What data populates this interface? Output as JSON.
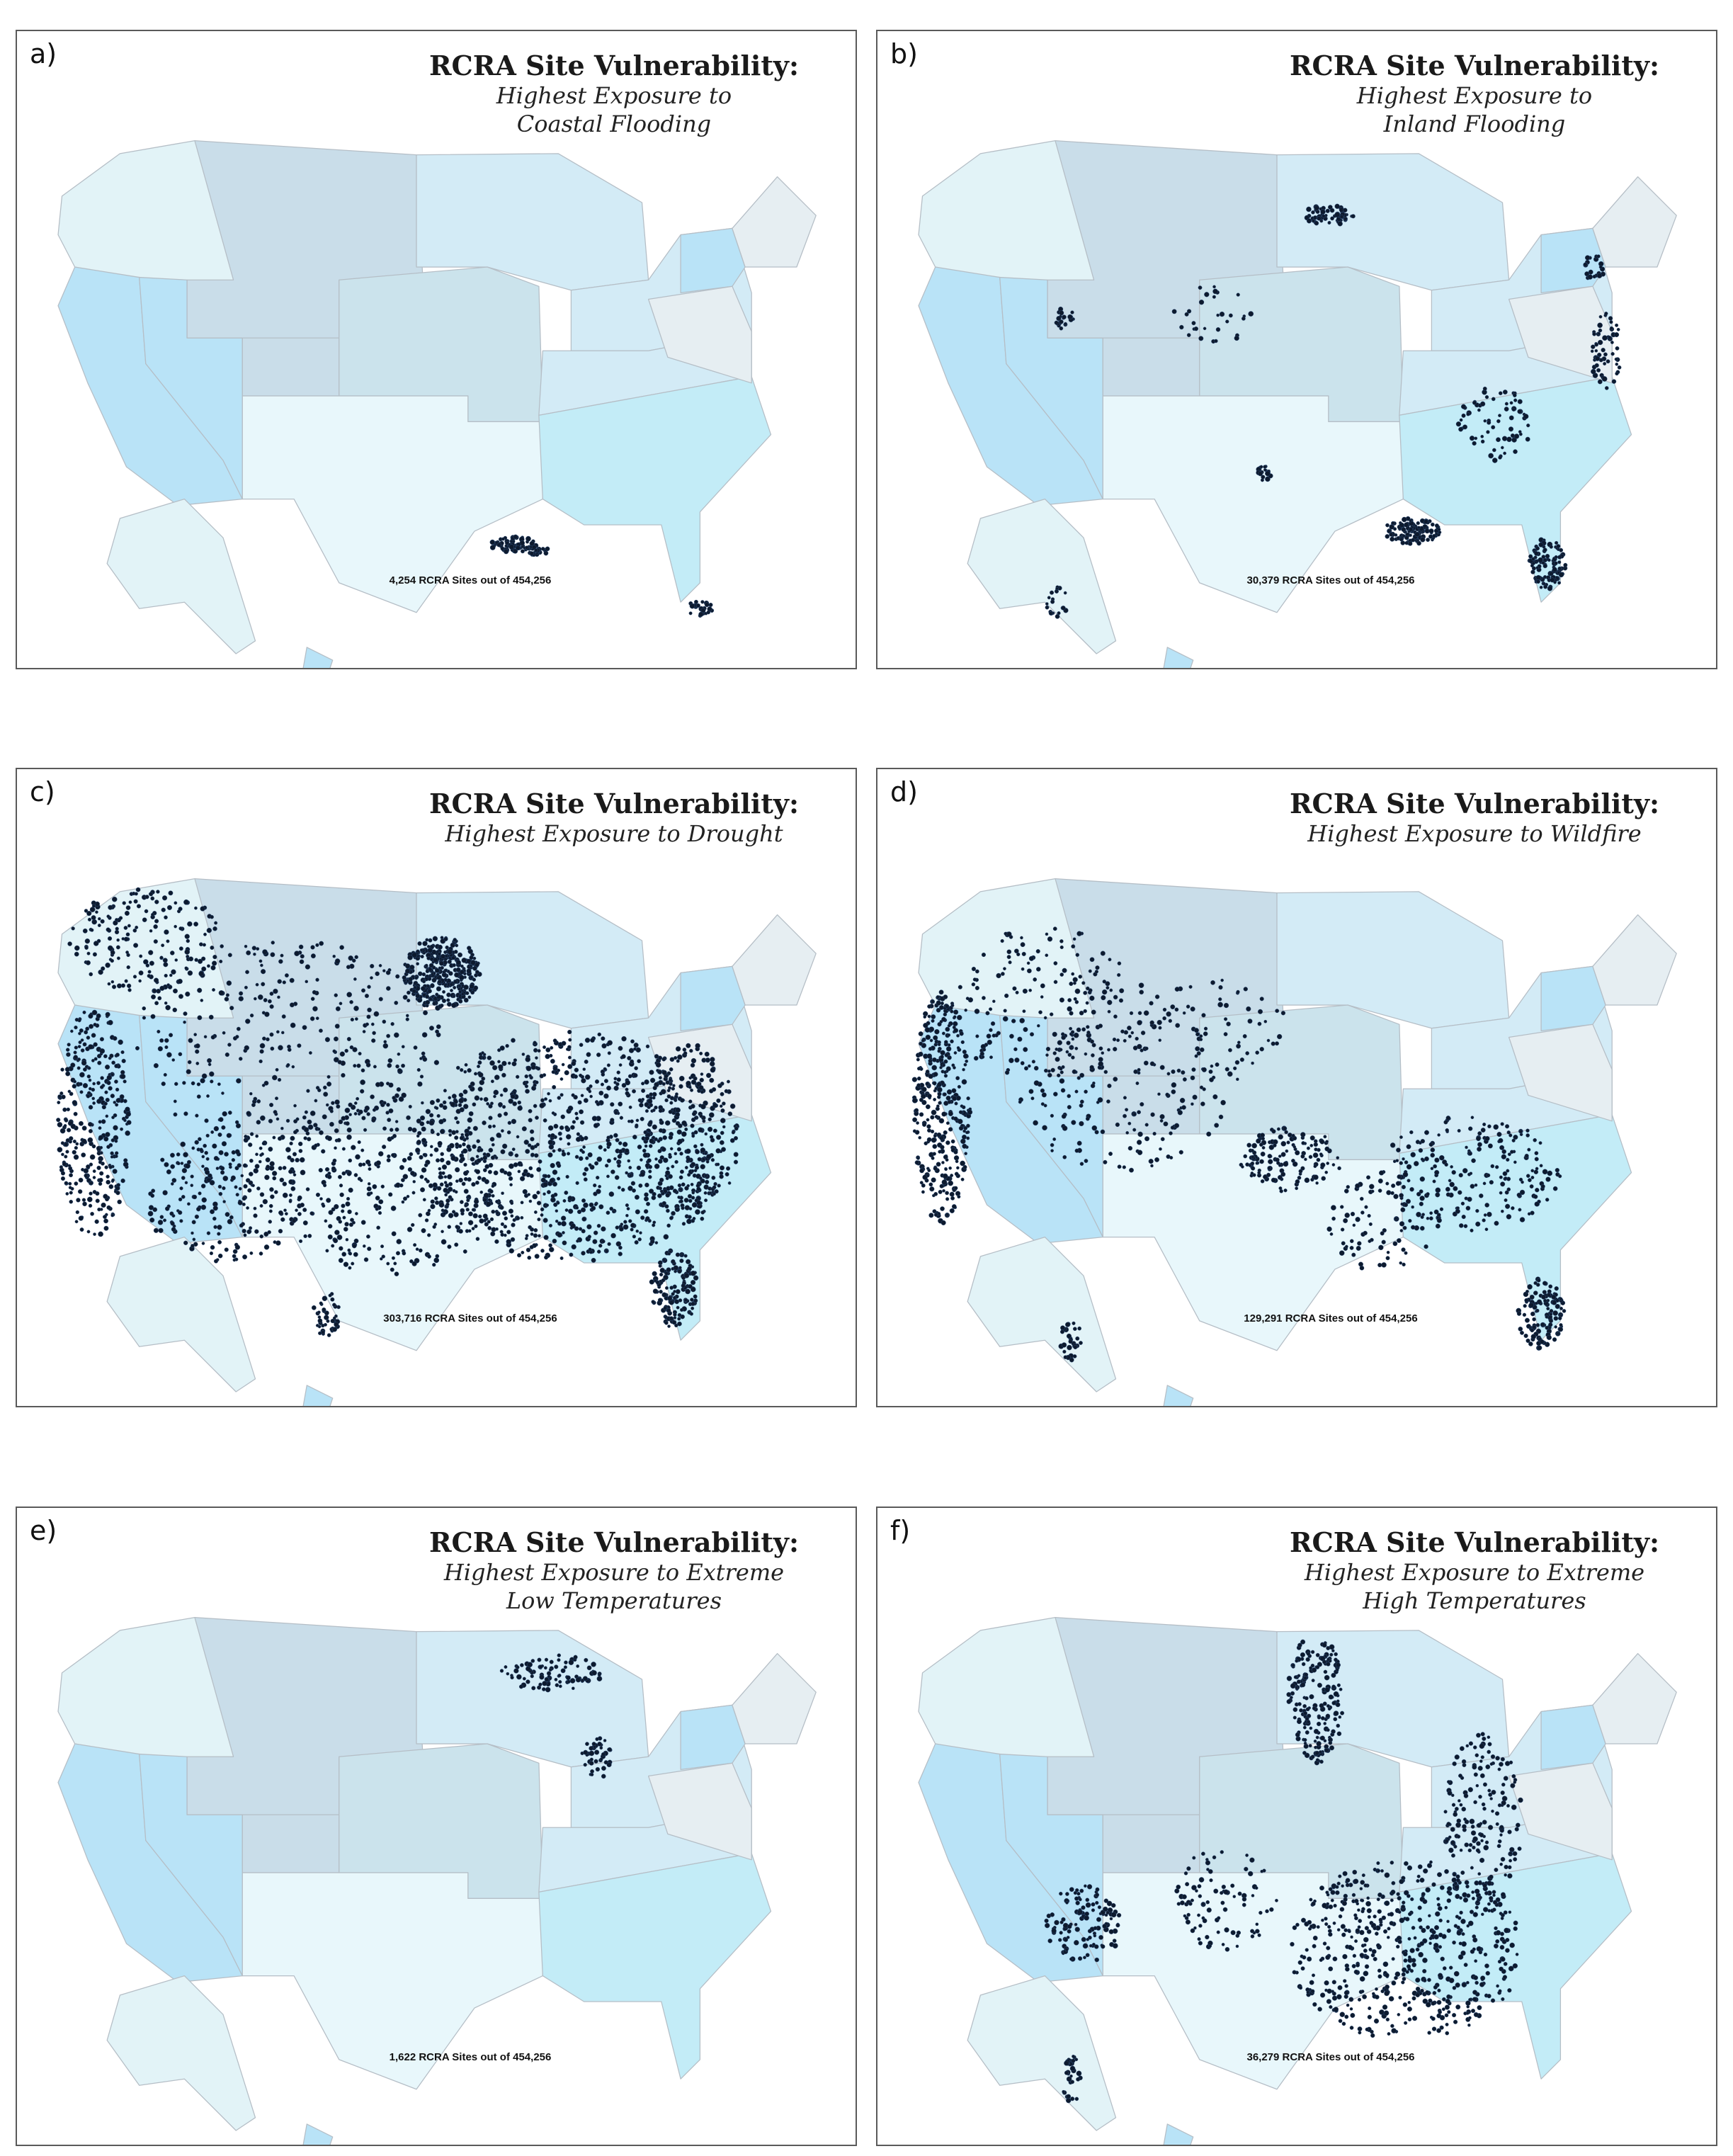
{
  "figure": {
    "colors": {
      "state_fills": [
        "#e2f3f7",
        "#c9dde9",
        "#cbe3ec",
        "#b9e3f7",
        "#d3ebf6",
        "#dcecf2",
        "#e8f7fb",
        "#c3ecf7",
        "#e6eef2"
      ],
      "state_stroke": "#b5bec6",
      "region_stroke": "#a8a8ae",
      "site_dot": "#0d1a2e",
      "panel_border": "#5a5a5a"
    },
    "panels": [
      {
        "label": "a)",
        "title": "RCRA Site Vulnerability:",
        "subtitle_lines": [
          "Highest Exposure to",
          "Coastal Flooding"
        ],
        "count_text": "4,254 RCRA Sites out of 454,256",
        "hazard": "coastal-flooding",
        "site_count": 4254,
        "total_sites": 454256
      },
      {
        "label": "b)",
        "title": "RCRA Site Vulnerability:",
        "subtitle_lines": [
          "Highest Exposure to",
          "Inland Flooding"
        ],
        "count_text": "30,379 RCRA Sites out of 454,256",
        "hazard": "inland-flooding",
        "site_count": 30379,
        "total_sites": 454256
      },
      {
        "label": "c)",
        "title": "RCRA Site Vulnerability:",
        "subtitle_lines": [
          "Highest Exposure to Drought"
        ],
        "count_text": "303,716 RCRA Sites out of 454,256",
        "hazard": "drought",
        "site_count": 303716,
        "total_sites": 454256
      },
      {
        "label": "d)",
        "title": "RCRA Site Vulnerability:",
        "subtitle_lines": [
          "Highest Exposure to Wildfire"
        ],
        "count_text": "129,291 RCRA Sites out of 454,256",
        "hazard": "wildfire",
        "site_count": 129291,
        "total_sites": 454256
      },
      {
        "label": "e)",
        "title": "RCRA Site Vulnerability:",
        "subtitle_lines": [
          "Highest Exposure to Extreme",
          "Low Temperatures"
        ],
        "count_text": "1,622 RCRA Sites out of 454,256",
        "hazard": "extreme-low-temperatures",
        "site_count": 1622,
        "total_sites": 454256
      },
      {
        "label": "f)",
        "title": "RCRA Site Vulnerability:",
        "subtitle_lines": [
          "Highest Exposure to Extreme",
          "High Temperatures"
        ],
        "count_text": "36,279 RCRA Sites out of 454,256",
        "hazard": "extreme-high-temperatures",
        "site_count": 36279,
        "total_sites": 454256
      }
    ]
  }
}
